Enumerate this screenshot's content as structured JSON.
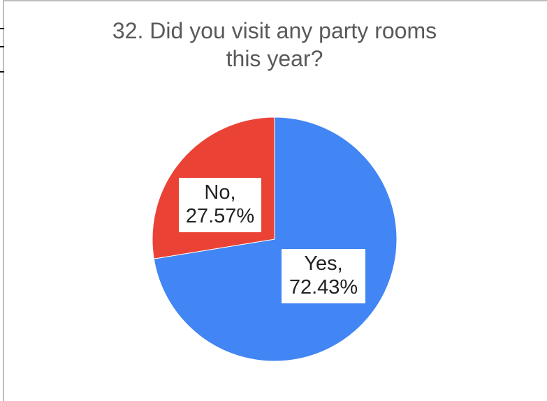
{
  "chart_data": {
    "type": "pie",
    "title": "32. Did you visit any party rooms this year?",
    "title_lines": [
      "32. Did you visit any party rooms",
      "this year?"
    ],
    "slices": [
      {
        "label": "Yes",
        "value": 72.43,
        "color": "#4285f4",
        "data_label_lines": [
          "Yes,",
          "72.43%"
        ]
      },
      {
        "label": "No",
        "value": 27.57,
        "color": "#ea4335",
        "data_label_lines": [
          "No,",
          "27.57%"
        ]
      }
    ],
    "start_angle_deg": 0,
    "direction": "clockwise",
    "legend": "none"
  }
}
